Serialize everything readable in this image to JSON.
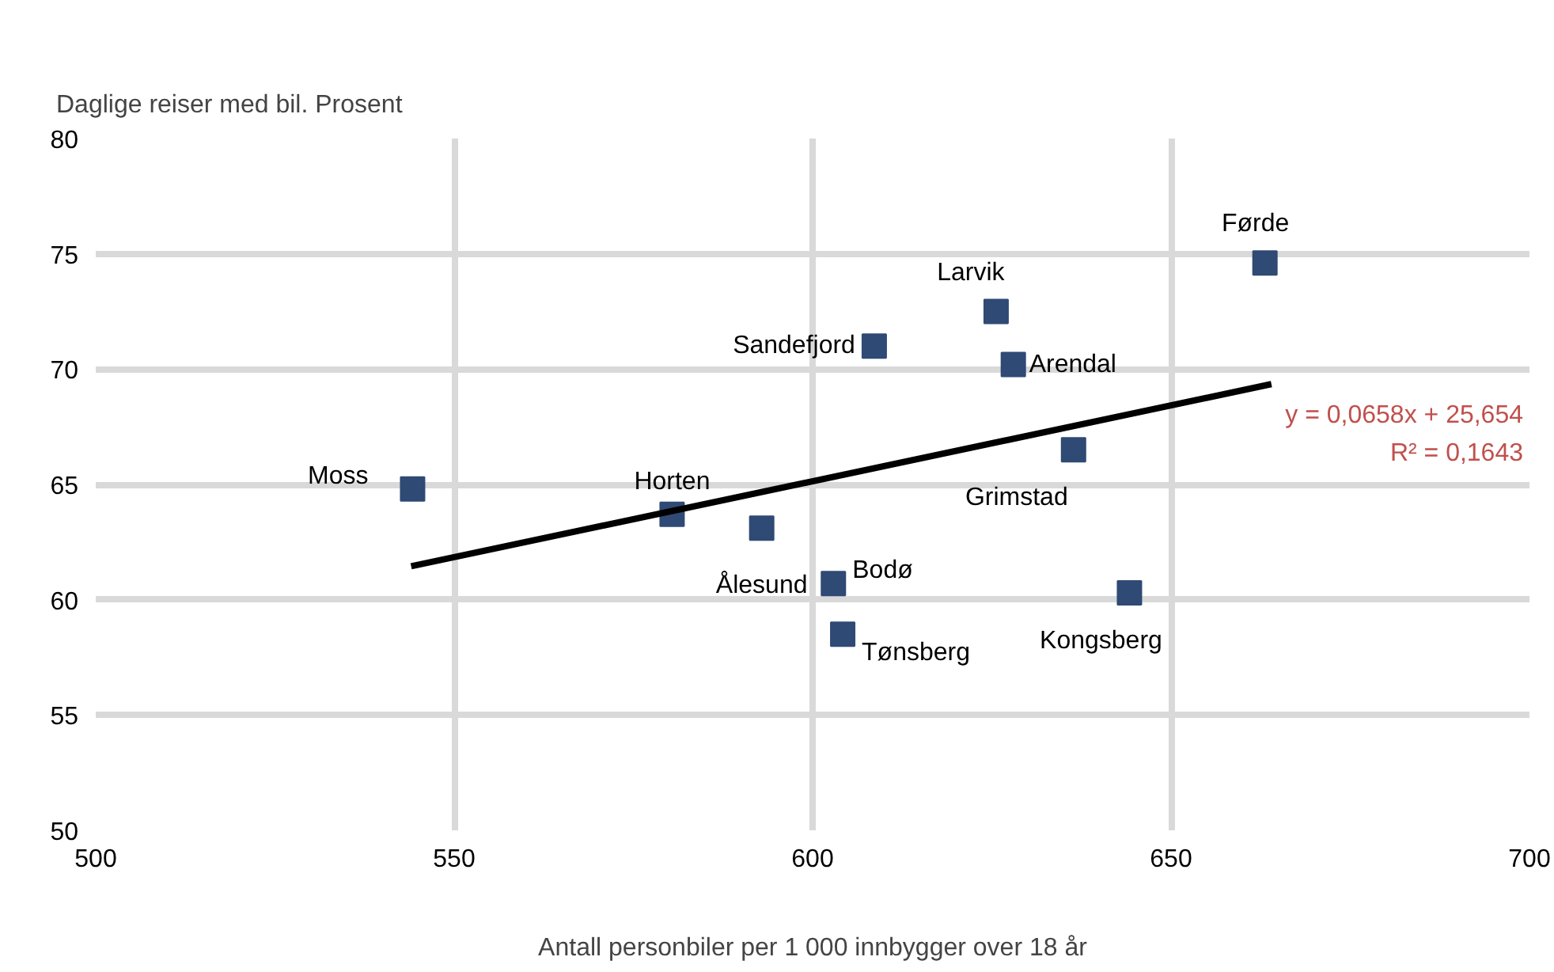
{
  "chart_data": {
    "type": "scatter",
    "ylabel": "Daglige reiser med bil. Prosent",
    "xlabel": "Antall personbiler per 1 000 innbygger over 18 år",
    "xlim": [
      500,
      700
    ],
    "xticks": [
      500,
      550,
      600,
      650,
      700
    ],
    "ylim": [
      50,
      80
    ],
    "yticks": [
      50,
      55,
      60,
      65,
      70,
      75,
      80
    ],
    "grid": true,
    "series": [
      {
        "marker": "square",
        "color": "#2f4a74",
        "x": [
          544.2,
          580.4,
          592.9,
          602.9,
          604.2,
          608.6,
          625.6,
          628.0,
          636.4,
          644.2,
          663.1
        ],
        "values": [
          64.8,
          63.7,
          63.1,
          60.7,
          58.5,
          71.0,
          72.5,
          70.2,
          66.5,
          60.3,
          74.6
        ]
      },
      {
        "type": "line",
        "color": "#000000",
        "x": [
          544,
          664
        ],
        "values": [
          61.45,
          69.35
        ]
      }
    ],
    "annotations": [
      {
        "text": "Moss",
        "x": 544.2,
        "y": 64.8
      },
      {
        "text": "Horten",
        "x": 580.4,
        "y": 63.7
      },
      {
        "text": "Ålesund",
        "x": 592.9,
        "y": 63.1
      },
      {
        "text": "Bodø",
        "x": 602.9,
        "y": 60.7
      },
      {
        "text": "Tønsberg",
        "x": 604.2,
        "y": 58.5
      },
      {
        "text": "Sandefjord",
        "x": 608.6,
        "y": 71.0
      },
      {
        "text": "Larvik",
        "x": 625.6,
        "y": 72.5
      },
      {
        "text": "Arendal",
        "x": 628.0,
        "y": 70.2
      },
      {
        "text": "Grimstad",
        "x": 636.4,
        "y": 66.5
      },
      {
        "text": "Kongsberg",
        "x": 644.2,
        "y": 60.3
      },
      {
        "text": "Førde",
        "x": 663.1,
        "y": 74.6
      },
      "y = 0,0658x + 25,654",
      "R² = 0,1643"
    ]
  }
}
